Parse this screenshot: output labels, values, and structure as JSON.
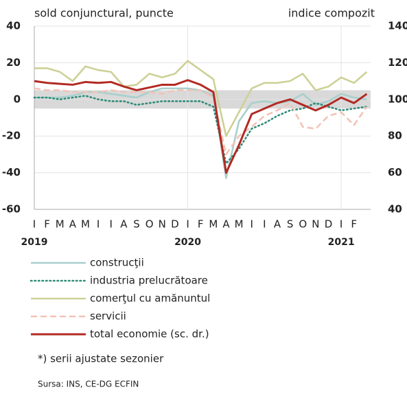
{
  "chart_data": {
    "type": "line",
    "left_axis_title": "sold conjunctural, puncte",
    "right_axis_title": "indice compozit",
    "categories": [
      "I",
      "F",
      "M",
      "A",
      "M",
      "I",
      "I",
      "A",
      "S",
      "O",
      "N",
      "D",
      "I",
      "F",
      "M",
      "A",
      "M",
      "I",
      "I",
      "A",
      "S",
      "O",
      "N",
      "D",
      "I",
      "F",
      null
    ],
    "years": [
      "2019",
      "2020",
      "2021"
    ],
    "ylim": [
      -60,
      40
    ],
    "yticks": [
      -60,
      -40,
      -20,
      0,
      20,
      40
    ],
    "y2lim": [
      40,
      140
    ],
    "y2ticks": [
      40,
      60,
      80,
      100,
      120,
      140
    ],
    "grid": true,
    "shaded_range": [
      -5,
      5
    ],
    "series": [
      {
        "name": "construcţii",
        "color": "#a9cfcc",
        "style": "solid",
        "values": [
          1,
          1,
          1,
          2,
          4,
          4,
          3,
          2,
          1,
          4,
          6,
          6,
          6,
          5,
          2,
          -43,
          -12,
          -2,
          -1,
          -2,
          -1,
          3,
          -3,
          -1,
          3,
          1,
          0
        ]
      },
      {
        "name": "industria prelucrătoare",
        "color": "#2e8b78",
        "style": "dotted",
        "values": [
          1,
          1,
          0,
          1,
          2,
          0,
          -1,
          -1,
          -3,
          -2,
          -1,
          -1,
          -1,
          -1,
          -4,
          -35,
          -27,
          -16,
          -13,
          -9,
          -6,
          -5,
          -2,
          -4,
          -6,
          -5,
          -4
        ]
      },
      {
        "name": "comerţul cu amănuntul",
        "color": "#cdd196",
        "style": "solid",
        "values": [
          17,
          17,
          15,
          10,
          18,
          16,
          15,
          7,
          8,
          14,
          12,
          14,
          21,
          16,
          11,
          -20,
          -7,
          6,
          9,
          9,
          10,
          14,
          5,
          7,
          12,
          9,
          15
        ]
      },
      {
        "name": "servicii",
        "color": "#f2c3b6",
        "style": "dashed",
        "values": [
          6,
          5,
          5,
          4,
          4,
          4,
          5,
          4,
          4,
          4,
          3,
          5,
          5,
          5,
          1,
          -30,
          -20,
          -15,
          -9,
          -6,
          -2,
          -15,
          -16,
          -9,
          -7,
          -14,
          -4
        ]
      },
      {
        "name": "total economie (sc. dr.)",
        "color": "#b22a24",
        "style": "solid",
        "axis": "y2",
        "values": [
          110,
          109,
          108.5,
          108,
          109.5,
          109,
          109.5,
          107,
          105,
          106.5,
          108,
          108,
          110.5,
          108,
          104,
          60,
          75,
          92,
          95,
          98,
          100,
          97,
          94,
          97,
          101,
          98,
          103
        ]
      }
    ],
    "footnote": "*) serii ajustate sezonier",
    "source": "Sursa: INS, CE-DG ECFIN"
  }
}
